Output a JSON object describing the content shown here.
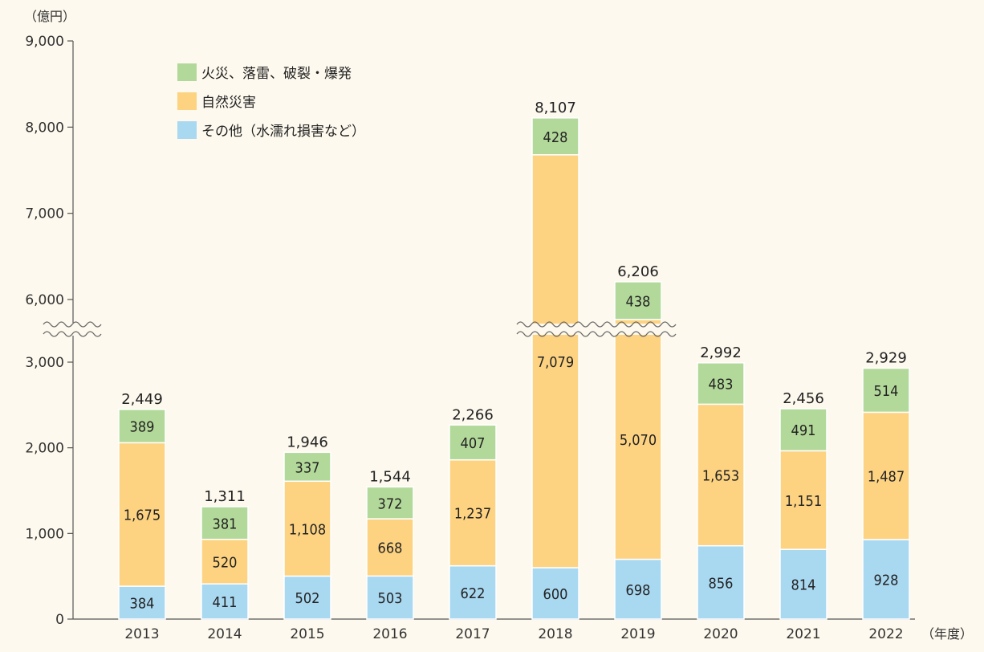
{
  "chart_data": {
    "type": "bar",
    "stacked": true,
    "y_unit": "（億円）",
    "x_unit": "（年度）",
    "categories": [
      "2013",
      "2014",
      "2015",
      "2016",
      "2017",
      "2018",
      "2019",
      "2020",
      "2021",
      "2022"
    ],
    "series": [
      {
        "name": "その他（水濡れ損害など）",
        "color": "#a9d8f1",
        "values": [
          384,
          411,
          502,
          503,
          622,
          600,
          698,
          856,
          814,
          928
        ]
      },
      {
        "name": "自然災害",
        "color": "#fdd382",
        "values": [
          1675,
          520,
          1108,
          668,
          1237,
          7079,
          5070,
          1653,
          1151,
          1487
        ]
      },
      {
        "name": "火災、落雷、破裂・爆発",
        "color": "#b3d99a",
        "values": [
          389,
          381,
          337,
          372,
          407,
          428,
          438,
          483,
          491,
          514
        ]
      }
    ],
    "value_labels": [
      [
        "384",
        "411",
        "502",
        "503",
        "622",
        "600",
        "698",
        "856",
        "814",
        "928"
      ],
      [
        "1,675",
        "520",
        "1,108",
        "668",
        "1,237",
        "7,079",
        "5,070",
        "1,653",
        "1,151",
        "1,487"
      ],
      [
        "389",
        "381",
        "337",
        "372",
        "407",
        "428",
        "438",
        "483",
        "491",
        "514"
      ]
    ],
    "totals": [
      2449,
      1311,
      1946,
      1544,
      2266,
      8107,
      6206,
      2992,
      2456,
      2929
    ],
    "total_labels": [
      "2,449",
      "1,311",
      "1,946",
      "1,544",
      "2,266",
      "8,107",
      "6,206",
      "2,992",
      "2,456",
      "2,929"
    ],
    "y_ticks_lower": [
      0,
      1000,
      2000,
      3000
    ],
    "y_ticks_lower_labels": [
      "0",
      "1,000",
      "2,000",
      "3,000"
    ],
    "y_ticks_upper": [
      6000,
      7000,
      8000,
      9000
    ],
    "y_ticks_upper_labels": [
      "6,000",
      "7,000",
      "8,000",
      "9,000"
    ],
    "axis_break": {
      "from": 3000,
      "to": 5700
    },
    "ylim": [
      0,
      9000
    ],
    "legend_position": "top-left",
    "grid": false
  }
}
